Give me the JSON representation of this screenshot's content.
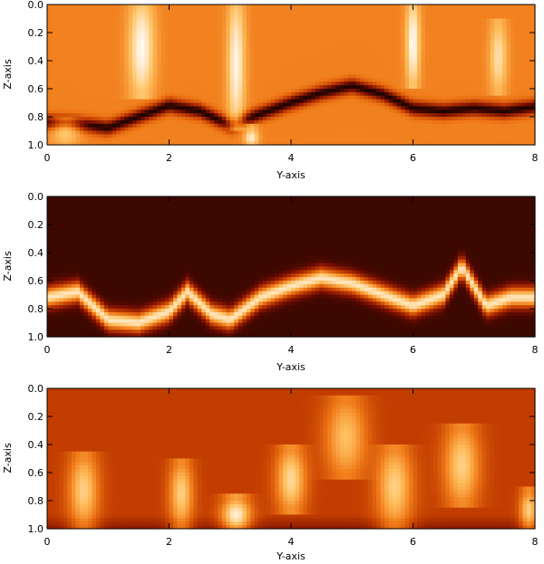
{
  "chart_data": [
    {
      "type": "heatmap",
      "panel": "top",
      "xlabel": "Y-axis",
      "ylabel": "Z-axis",
      "xlim": [
        0,
        8
      ],
      "ylim": [
        1.0,
        0.0
      ],
      "x_ticks": [
        "0",
        "2",
        "4",
        "6",
        "8"
      ],
      "y_ticks": [
        "0.0",
        "0.2",
        "0.4",
        "0.6",
        "0.8",
        "1.0"
      ],
      "colormap": [
        "#000000",
        "#7a0f00",
        "#c23d00",
        "#f07a18",
        "#ffc060",
        "#ffffff"
      ],
      "background_level": 0.62,
      "ridge": {
        "y": [
          0,
          0.5,
          1,
          1.5,
          2,
          2.5,
          3,
          3.5,
          4,
          4.5,
          5,
          5.5,
          6,
          6.5,
          7,
          7.5,
          8
        ],
        "z": [
          0.84,
          0.85,
          0.88,
          0.8,
          0.72,
          0.76,
          0.86,
          0.78,
          0.7,
          0.63,
          0.58,
          0.64,
          0.74,
          0.76,
          0.74,
          0.76,
          0.73
        ],
        "level": 0.05,
        "width": 0.05
      },
      "plumes": [
        {
          "y": 1.55,
          "z_top": 0.0,
          "z_bottom": 0.62,
          "level": 0.98,
          "width": 0.22
        },
        {
          "y": 3.1,
          "z_top": 0.0,
          "z_bottom": 0.85,
          "level": 0.97,
          "width": 0.15
        },
        {
          "y": 6.0,
          "z_top": 0.0,
          "z_bottom": 0.55,
          "level": 0.99,
          "width": 0.12
        },
        {
          "y": 7.4,
          "z_top": 0.15,
          "z_bottom": 0.6,
          "level": 0.9,
          "width": 0.15
        },
        {
          "y": 0.3,
          "z_top": 0.85,
          "z_bottom": 1.0,
          "level": 0.82,
          "width": 0.25
        },
        {
          "y": 3.35,
          "z_top": 0.9,
          "z_bottom": 1.0,
          "level": 0.95,
          "width": 0.12
        }
      ]
    },
    {
      "type": "heatmap",
      "panel": "middle",
      "xlabel": "Y-axis",
      "ylabel": "Z-axis",
      "xlim": [
        0,
        8
      ],
      "ylim": [
        1.0,
        0.0
      ],
      "x_ticks": [
        "0",
        "2",
        "4",
        "6",
        "8"
      ],
      "y_ticks": [
        "0.0",
        "0.2",
        "0.4",
        "0.6",
        "0.8",
        "1.0"
      ],
      "colormap": [
        "#000000",
        "#7a0f00",
        "#c23d00",
        "#f07a18",
        "#ffc060",
        "#ffffff"
      ],
      "background_level": 0.1,
      "ridge": {
        "y": [
          0,
          0.5,
          1,
          1.5,
          2,
          2.3,
          2.7,
          3,
          3.5,
          4,
          4.5,
          5,
          5.5,
          6,
          6.5,
          6.8,
          7.2,
          7.6,
          8
        ],
        "z": [
          0.72,
          0.68,
          0.88,
          0.9,
          0.82,
          0.68,
          0.84,
          0.88,
          0.72,
          0.64,
          0.58,
          0.62,
          0.7,
          0.78,
          0.7,
          0.5,
          0.78,
          0.72,
          0.72
        ],
        "level": 0.92,
        "width": 0.07
      }
    },
    {
      "type": "heatmap",
      "panel": "bottom",
      "xlabel": "Y-axis",
      "ylabel": "Z-axis",
      "xlim": [
        0,
        8
      ],
      "ylim": [
        1.0,
        0.0
      ],
      "x_ticks": [
        "0",
        "2",
        "4",
        "6",
        "8"
      ],
      "y_ticks": [
        "0.0",
        "0.2",
        "0.4",
        "0.6",
        "0.8",
        "1.0"
      ],
      "colormap": [
        "#000000",
        "#7a0f00",
        "#c23d00",
        "#f07a18",
        "#ffc060",
        "#ffffff"
      ],
      "background_level": 0.4,
      "bottom_band_level": 0.25,
      "plumes": [
        {
          "y": 0.6,
          "z_top": 0.5,
          "z_bottom": 0.95,
          "level": 0.85,
          "width": 0.25
        },
        {
          "y": 2.2,
          "z_top": 0.55,
          "z_bottom": 0.95,
          "level": 0.85,
          "width": 0.2
        },
        {
          "y": 3.1,
          "z_top": 0.8,
          "z_bottom": 1.0,
          "level": 0.95,
          "width": 0.25
        },
        {
          "y": 4.0,
          "z_top": 0.45,
          "z_bottom": 0.85,
          "level": 0.88,
          "width": 0.25
        },
        {
          "y": 4.9,
          "z_top": 0.1,
          "z_bottom": 0.6,
          "level": 0.8,
          "width": 0.35
        },
        {
          "y": 5.7,
          "z_top": 0.45,
          "z_bottom": 0.95,
          "level": 0.85,
          "width": 0.3
        },
        {
          "y": 6.8,
          "z_top": 0.3,
          "z_bottom": 0.8,
          "level": 0.85,
          "width": 0.3
        },
        {
          "y": 7.9,
          "z_top": 0.75,
          "z_bottom": 0.98,
          "level": 0.85,
          "width": 0.15
        }
      ]
    }
  ]
}
